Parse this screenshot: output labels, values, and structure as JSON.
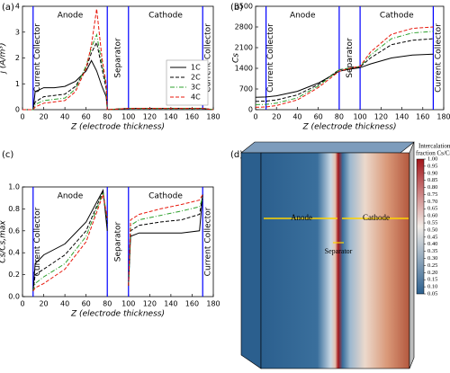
{
  "chart_data": [
    {
      "type": "line",
      "panel_label": "(a)",
      "ylabel": "j (A/m³)",
      "xlabel": "Z (electrode thickness)",
      "xlim": [
        0,
        180
      ],
      "xticks": [
        0,
        20,
        40,
        60,
        80,
        100,
        120,
        140,
        160,
        180
      ],
      "ylim": [
        0,
        4
      ],
      "yticks": [
        0,
        1,
        2,
        3,
        4
      ],
      "boundaries": [
        10,
        80,
        100,
        170
      ],
      "boundary_color": "#0000ff",
      "region_labels": [
        "Current Collector",
        "Anode",
        "Separator",
        "Cathode",
        "Current Collector"
      ],
      "region_color": "#1a1acc",
      "legend": "center right",
      "x": [
        0,
        10,
        12,
        20,
        30,
        40,
        50,
        60,
        65,
        70,
        75,
        79,
        80,
        100,
        170,
        180
      ],
      "series": [
        {
          "name": "1C",
          "color": "#000000",
          "linestyle": "solid",
          "values": [
            0,
            0,
            0.7,
            0.85,
            0.85,
            0.9,
            1.1,
            1.5,
            1.9,
            1.5,
            0.9,
            0.5,
            0,
            0.05,
            0.05,
            0
          ]
        },
        {
          "name": "2C",
          "color": "#000000",
          "linestyle": "dashed",
          "values": [
            0,
            0,
            0.3,
            0.5,
            0.55,
            0.6,
            0.9,
            1.6,
            2.2,
            2.6,
            1.6,
            0.8,
            0,
            0.05,
            0.05,
            0
          ]
        },
        {
          "name": "3C",
          "color": "#2ca02c",
          "linestyle": "dashdot",
          "values": [
            0,
            0,
            0.2,
            0.35,
            0.4,
            0.45,
            0.8,
            1.7,
            2.4,
            2.9,
            1.8,
            0.9,
            0,
            0.05,
            0.05,
            0
          ]
        },
        {
          "name": "4C",
          "color": "#e8180c",
          "linestyle": "dashed",
          "values": [
            0,
            0,
            0.1,
            0.25,
            0.3,
            0.35,
            0.7,
            1.6,
            2.5,
            3.9,
            2.0,
            1.0,
            0,
            0.05,
            0.05,
            0
          ]
        }
      ]
    },
    {
      "type": "line",
      "panel_label": "(b)",
      "ylabel": "Cs",
      "xlabel": "Z (electrode thickness)",
      "xlim": [
        0,
        180
      ],
      "xticks": [
        0,
        20,
        40,
        60,
        80,
        100,
        120,
        140,
        160,
        180
      ],
      "ylim": [
        0,
        3500
      ],
      "yticks": [
        0,
        700,
        1400,
        2100,
        2800,
        3500
      ],
      "boundaries": [
        10,
        80,
        100,
        170
      ],
      "boundary_color": "#0000ff",
      "region_labels": [
        "Current Collector",
        "Anode",
        "Separator",
        "Cathode",
        "Current Collector"
      ],
      "region_color": "#1a1acc",
      "x": [
        0,
        10,
        20,
        40,
        60,
        80,
        90,
        100,
        110,
        130,
        150,
        170
      ],
      "series": [
        {
          "name": "1C",
          "color": "#000000",
          "linestyle": "solid",
          "values": [
            420,
            430,
            470,
            620,
            900,
            1300,
            1370,
            1420,
            1550,
            1750,
            1850,
            1880
          ]
        },
        {
          "name": "2C",
          "color": "#000000",
          "linestyle": "dashed",
          "values": [
            280,
            290,
            330,
            500,
            850,
            1350,
            1400,
            1450,
            1750,
            2200,
            2350,
            2400
          ]
        },
        {
          "name": "3C",
          "color": "#2ca02c",
          "linestyle": "dashdot",
          "values": [
            170,
            180,
            220,
            400,
            800,
            1350,
            1410,
            1460,
            1850,
            2400,
            2600,
            2650
          ]
        },
        {
          "name": "4C",
          "color": "#e8180c",
          "linestyle": "dashed",
          "values": [
            80,
            90,
            140,
            330,
            750,
            1300,
            1400,
            1470,
            1950,
            2550,
            2750,
            2800
          ]
        }
      ]
    },
    {
      "type": "line",
      "panel_label": "(c)",
      "ylabel": "Cs/Cs,max",
      "xlabel": "Z (electrode thickness)",
      "xlim": [
        0,
        180
      ],
      "xticks": [
        0,
        20,
        40,
        60,
        80,
        100,
        120,
        140,
        160,
        180
      ],
      "ylim": [
        0,
        1
      ],
      "yticks": [
        {
          "value": 0,
          "label": "0.0"
        },
        0.2,
        0.4,
        0.6,
        0.8,
        {
          "value": 1,
          "label": "1.0"
        }
      ],
      "boundaries": [
        10,
        80,
        100,
        170
      ],
      "boundary_color": "#0000ff",
      "region_labels": [
        "Current Collector",
        "Anode",
        "Separator",
        "Cathode",
        "Current Collector"
      ],
      "region_color": "#1a1acc",
      "x": [
        10,
        12,
        20,
        40,
        60,
        76,
        80,
        90,
        100,
        102,
        110,
        130,
        150,
        167,
        170
      ],
      "series": [
        {
          "name": "1C",
          "color": "#000000",
          "linestyle": "solid",
          "values": [
            0.05,
            0.3,
            0.38,
            0.48,
            0.68,
            0.97,
            0.6,
            null,
            0.1,
            0.55,
            0.58,
            0.58,
            0.58,
            0.6,
            0.93
          ]
        },
        {
          "name": "2C",
          "color": "#000000",
          "linestyle": "dashed",
          "values": [
            0.05,
            0.2,
            0.25,
            0.38,
            0.6,
            0.96,
            0.65,
            null,
            0.1,
            0.6,
            0.65,
            0.68,
            0.7,
            0.75,
            0.92
          ]
        },
        {
          "name": "3C",
          "color": "#2ca02c",
          "linestyle": "dashdot",
          "values": [
            0.05,
            0.12,
            0.18,
            0.3,
            0.55,
            0.95,
            0.7,
            null,
            0.1,
            0.65,
            0.7,
            0.74,
            0.78,
            0.82,
            0.9
          ]
        },
        {
          "name": "4C",
          "color": "#e8180c",
          "linestyle": "dashed",
          "values": [
            0.05,
            0.08,
            0.12,
            0.25,
            0.5,
            0.93,
            0.72,
            null,
            0.1,
            0.7,
            0.75,
            0.8,
            0.84,
            0.88,
            0.93
          ]
        }
      ]
    },
    {
      "type": "render3d",
      "panel_label": "(d)",
      "colorbar_title": [
        "Intercalation",
        "fraction Cs/Cs,max"
      ],
      "colormap": [
        "#2b5f8e",
        "#f2ede8",
        "#a3161b"
      ],
      "clim": [
        0.05,
        1
      ],
      "cticks": [
        0.05,
        {
          "value": 0.1,
          "label": "0.10"
        },
        0.15,
        {
          "value": 0.2,
          "label": "0.20"
        },
        0.25,
        {
          "value": 0.3,
          "label": "0.30"
        },
        0.35,
        {
          "value": 0.4,
          "label": "0.40"
        },
        0.45,
        {
          "value": 0.5,
          "label": "0.50"
        },
        0.55,
        {
          "value": 0.6,
          "label": "0.60"
        },
        0.65,
        {
          "value": 0.7,
          "label": "0.70"
        },
        0.75,
        {
          "value": 0.8,
          "label": "0.80"
        },
        0.85,
        {
          "value": 0.9,
          "label": "0.90"
        },
        0.95,
        {
          "value": 1,
          "label": "1.00"
        }
      ],
      "annotations": [
        "Anode",
        "Cathode",
        "Separator"
      ]
    }
  ]
}
